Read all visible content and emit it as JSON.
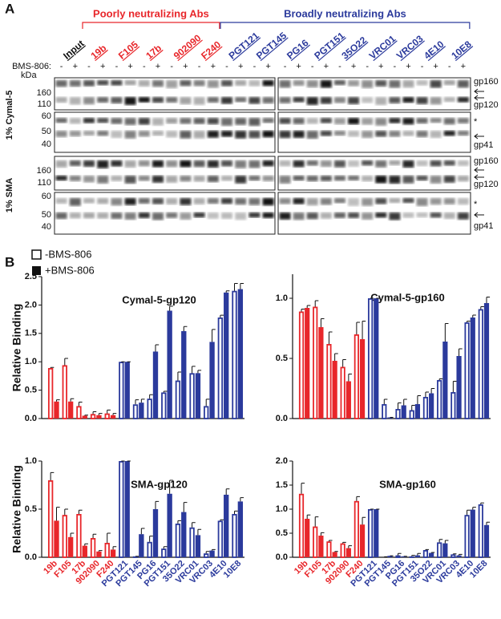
{
  "panel_a": {
    "label": "A",
    "input_label": "Input",
    "groups": [
      {
        "title": "Poorly neutralizing Abs",
        "color": "#e8262a",
        "antibodies": [
          "19b",
          "F105",
          "17b",
          "902090",
          "F240"
        ]
      },
      {
        "title": "Broadly neutralizing Abs",
        "color": "#2b3a9c",
        "antibodies": [
          "PGT121",
          "PGT145",
          "PG16",
          "PGT151",
          "35O22",
          "VRC01",
          "VRC03",
          "4E10",
          "10E8"
        ]
      }
    ],
    "bms_label": "BMS-806:",
    "signs": [
      "-",
      "+"
    ],
    "kda_label": "kDa",
    "blots": [
      {
        "condition": "1% Cymal-5",
        "strips": [
          {
            "markers": [
              "160",
              "110"
            ],
            "labels": [
              "gp160",
              "gp120"
            ]
          },
          {
            "markers": [
              "60",
              "50",
              "40"
            ],
            "labels": [
              "*",
              "gp41"
            ]
          }
        ]
      },
      {
        "condition": "1% SMA",
        "strips": [
          {
            "markers": [
              "160",
              "110"
            ],
            "labels": [
              "gp160",
              "gp120"
            ]
          },
          {
            "markers": [
              "60",
              "50",
              "40"
            ],
            "labels": [
              "*",
              "gp41"
            ]
          }
        ]
      }
    ]
  },
  "panel_b": {
    "label": "B",
    "legend": [
      "-BMS-806",
      "+BMS-806"
    ]
  },
  "chart_data": [
    {
      "type": "bar",
      "title": "Cymal-5-gp120",
      "ylabel": "Relative Binding",
      "category_colors": [
        "#e8262a",
        "#e8262a",
        "#e8262a",
        "#e8262a",
        "#e8262a",
        "#2b3a9c",
        "#2b3a9c",
        "#2b3a9c",
        "#2b3a9c",
        "#2b3a9c",
        "#2b3a9c",
        "#2b3a9c",
        "#2b3a9c",
        "#2b3a9c"
      ],
      "series": [
        {
          "style": "open",
          "values": [
            0.89,
            0.94,
            0.22,
            0.08,
            0.09,
            1.0,
            0.25,
            0.35,
            0.46,
            0.67,
            0.8,
            0.22,
            1.78,
            2.25
          ],
          "errors": [
            0.01,
            0.12,
            0.07,
            0.04,
            0.06,
            0,
            0.08,
            0.07,
            0.02,
            0.15,
            0.12,
            0.12,
            0.04,
            0.13
          ]
        },
        {
          "style": "filled",
          "values": [
            0.3,
            0.3,
            0.05,
            0.06,
            0.06,
            1.0,
            0.28,
            1.18,
            1.9,
            1.54,
            0.8,
            1.35,
            2.22,
            2.28
          ],
          "errors": [
            0.03,
            0.05,
            0.01,
            0.03,
            0.03,
            0,
            0.06,
            0.12,
            0.08,
            0.08,
            0.05,
            0.22,
            0.03,
            0.1
          ]
        }
      ],
      "ylim": [
        0,
        2.5
      ],
      "yticks": [
        {
          "value": 0,
          "label": "0.0"
        },
        0.5,
        {
          "value": 1,
          "label": "1.0"
        },
        1.5,
        {
          "value": 2,
          "label": "2.0"
        },
        2.5
      ]
    },
    {
      "type": "bar",
      "title": "Cymal-5-gp160",
      "category_colors": [
        "#e8262a",
        "#e8262a",
        "#e8262a",
        "#e8262a",
        "#e8262a",
        "#2b3a9c",
        "#2b3a9c",
        "#2b3a9c",
        "#2b3a9c",
        "#2b3a9c",
        "#2b3a9c",
        "#2b3a9c",
        "#2b3a9c",
        "#2b3a9c"
      ],
      "series": [
        {
          "style": "open",
          "values": [
            0.89,
            0.93,
            0.62,
            0.43,
            0.7,
            1.0,
            0.12,
            0.08,
            0.07,
            0.18,
            0.32,
            0.22,
            0.8,
            0.91
          ],
          "errors": [
            0.02,
            0.05,
            0.1,
            0.06,
            0.1,
            0,
            0.04,
            0.05,
            0.04,
            0.04,
            0.01,
            0.09,
            0.01,
            0.02
          ]
        },
        {
          "style": "filled",
          "values": [
            0.92,
            0.76,
            0.48,
            0.31,
            0.66,
            1.0,
            0.01,
            0.11,
            0.12,
            0.21,
            0.64,
            0.52,
            0.84,
            0.96
          ],
          "errors": [
            0.02,
            0.07,
            0.06,
            0.06,
            0.15,
            0,
            0,
            0.05,
            0.07,
            0.04,
            0.15,
            0.06,
            0.02,
            0.05
          ]
        }
      ],
      "ylim": [
        0,
        1.2
      ],
      "yticks": [
        {
          "value": 0,
          "label": "0.0"
        },
        0.5,
        {
          "value": 1,
          "label": "1.0"
        }
      ]
    },
    {
      "type": "bar",
      "title": "SMA-gp120",
      "ylabel": "Relative Binding",
      "categories": [
        "19b",
        "F105",
        "17b",
        "902090",
        "F240",
        "PGT121",
        "PGT145",
        "PG16",
        "PGT151",
        "35O22",
        "VRC01",
        "VRC03",
        "4E10",
        "10E8"
      ],
      "category_colors": [
        "#e8262a",
        "#e8262a",
        "#e8262a",
        "#e8262a",
        "#e8262a",
        "#2b3a9c",
        "#2b3a9c",
        "#2b3a9c",
        "#2b3a9c",
        "#2b3a9c",
        "#2b3a9c",
        "#2b3a9c",
        "#2b3a9c",
        "#2b3a9c"
      ],
      "series": [
        {
          "style": "open",
          "values": [
            0.8,
            0.44,
            0.45,
            0.2,
            0.15,
            1.0,
            0.01,
            0.16,
            0.09,
            0.35,
            0.31,
            0.04,
            0.38,
            0.45
          ],
          "errors": [
            0.08,
            0.06,
            0.04,
            0.04,
            0.1,
            0,
            0,
            0.06,
            0.02,
            0.03,
            0.05,
            0.02,
            0.01,
            0.03
          ]
        },
        {
          "style": "filled",
          "values": [
            0.38,
            0.21,
            0.12,
            0.06,
            0.08,
            1.0,
            0.24,
            0.5,
            0.66,
            0.47,
            0.23,
            0.07,
            0.65,
            0.58
          ],
          "errors": [
            0.14,
            0.04,
            0.02,
            0.01,
            0.03,
            0,
            0.06,
            0.08,
            0.14,
            0.1,
            0.06,
            0.01,
            0.06,
            0.04
          ]
        }
      ],
      "ylim": [
        0,
        1.0
      ],
      "yticks": [
        {
          "value": 0,
          "label": "0.0"
        },
        0.5,
        {
          "value": 1,
          "label": "1.0"
        }
      ]
    },
    {
      "type": "bar",
      "title": "SMA-gp160",
      "categories": [
        "19b",
        "F105",
        "17b",
        "902090",
        "F240",
        "PGT121",
        "PGT145",
        "PG16",
        "PGT151",
        "35O22",
        "VRC01",
        "VRC03",
        "4E10",
        "10E8"
      ],
      "category_colors": [
        "#e8262a",
        "#e8262a",
        "#e8262a",
        "#e8262a",
        "#e8262a",
        "#2b3a9c",
        "#2b3a9c",
        "#2b3a9c",
        "#2b3a9c",
        "#2b3a9c",
        "#2b3a9c",
        "#2b3a9c",
        "#2b3a9c",
        "#2b3a9c"
      ],
      "series": [
        {
          "style": "open",
          "values": [
            1.32,
            0.64,
            0.33,
            0.29,
            1.17,
            1.0,
            0.01,
            0.04,
            0.02,
            0.15,
            0.31,
            0.06,
            0.88,
            1.1
          ],
          "errors": [
            0.22,
            0.2,
            0.02,
            0.02,
            0.09,
            0,
            0,
            0.04,
            0.02,
            0.01,
            0.06,
            0.01,
            0.1,
            0.03
          ]
        },
        {
          "style": "filled",
          "values": [
            0.8,
            0.45,
            0.11,
            0.19,
            0.68,
            1.0,
            0.03,
            0.02,
            0.04,
            0.09,
            0.29,
            0.04,
            0.99,
            0.67
          ],
          "errors": [
            0.08,
            0.06,
            0.01,
            0.05,
            0.15,
            0,
            0,
            0,
            0.04,
            0.01,
            0.06,
            0.02,
            0.05,
            0.06
          ]
        }
      ],
      "ylim": [
        0,
        2.0
      ],
      "yticks": [
        {
          "value": 0,
          "label": "0.0"
        },
        0.5,
        {
          "value": 1,
          "label": "1.0"
        },
        1.5,
        {
          "value": 2,
          "label": "2.0"
        }
      ]
    }
  ]
}
